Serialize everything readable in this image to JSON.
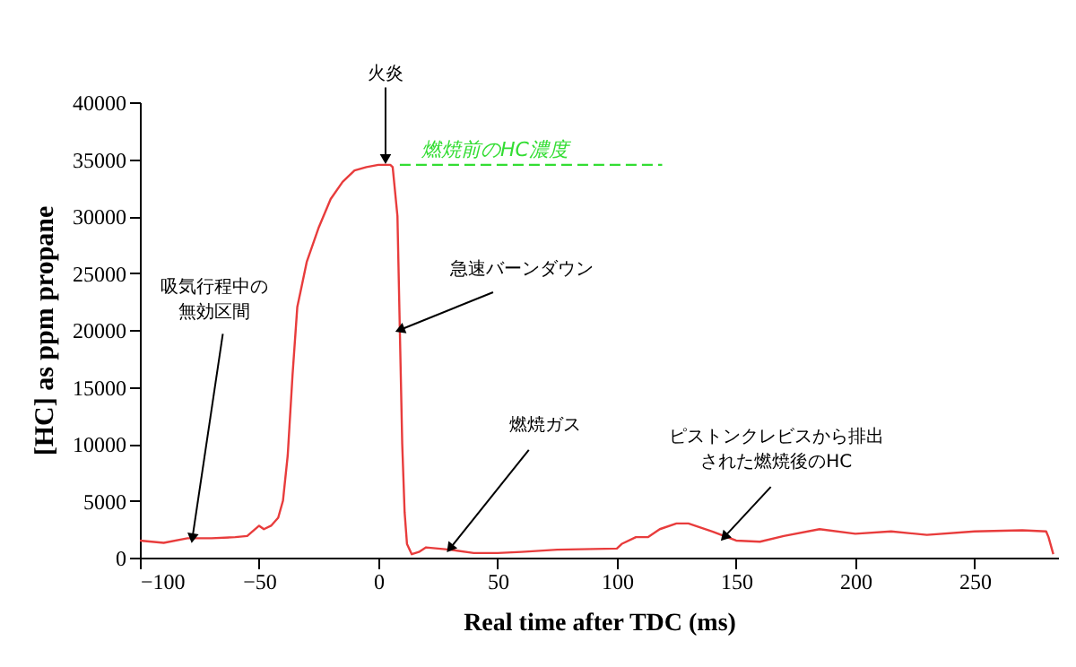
{
  "chart_data": {
    "type": "line",
    "xlabel": "Real time after TDC (ms)",
    "ylabel": "[HC] as ppm propane",
    "xlim": [
      -100,
      285
    ],
    "xticks": [
      -100,
      -50,
      0,
      50,
      100,
      150,
      200,
      250
    ],
    "ylim": [
      0,
      40000
    ],
    "yticks": [
      0,
      5000,
      10000,
      15000,
      20000,
      25000,
      30000,
      35000,
      40000
    ],
    "grid": false,
    "series": [
      {
        "color": "#e83c3c",
        "x": [
          -100,
          -90,
          -80,
          -70,
          -60,
          -55,
          -50,
          -48,
          -45,
          -42,
          -40,
          -38,
          -36,
          -34,
          -32,
          -30,
          -25,
          -20,
          -15,
          -10,
          -5,
          0,
          5,
          6,
          8,
          9,
          10,
          11,
          12,
          14,
          17,
          20,
          25,
          30,
          40,
          50,
          60,
          75,
          100,
          102,
          108,
          113,
          118,
          125,
          130,
          140,
          150,
          160,
          170,
          185,
          200,
          215,
          230,
          250,
          270,
          280,
          281,
          283
        ],
        "values": [
          1500,
          1300,
          1700,
          1700,
          1800,
          1900,
          2800,
          2500,
          2800,
          3500,
          5000,
          9000,
          16000,
          22000,
          24000,
          26000,
          29000,
          31500,
          33000,
          34000,
          34300,
          34500,
          34500,
          34300,
          30000,
          20000,
          10000,
          4000,
          1200,
          300,
          500,
          900,
          800,
          700,
          400,
          400,
          500,
          700,
          800,
          1200,
          1800,
          1800,
          2500,
          3000,
          3000,
          2300,
          1500,
          1400,
          1900,
          2500,
          2100,
          2300,
          2000,
          2300,
          2400,
          2300,
          1800,
          300
        ]
      },
      {
        "name": "燃焼前のHC濃度",
        "color": "#33dd33",
        "line_style": "dashed",
        "x": [
          9,
          119
        ],
        "values": [
          34500,
          34500
        ]
      }
    ],
    "annotations": [
      {
        "text": "火炎",
        "x": 3,
        "y": 35000
      },
      {
        "text": "吸気行程中の無効区間",
        "x": -78,
        "y": 1700
      },
      {
        "text": "急速バーンダウン",
        "x": 9,
        "y": 20000
      },
      {
        "text": "燃焼ガス",
        "x": 30,
        "y": 800
      },
      {
        "text": "ピストンクレビスから排出された燃焼後のHC",
        "x": 145,
        "y": 1800
      }
    ]
  }
}
